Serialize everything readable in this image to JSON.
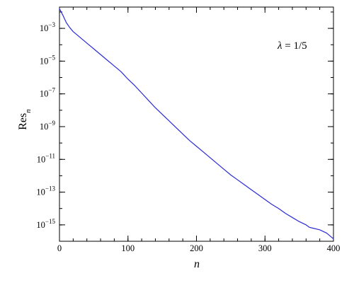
{
  "chart_data": {
    "type": "line",
    "title": "",
    "xlabel": "n",
    "ylabel": {
      "base": "Res",
      "subscript": "n"
    },
    "annotation": {
      "lhs": "λ",
      "rhs": " = 1/5"
    },
    "xlim": [
      0,
      400
    ],
    "ylim_log10": [
      -16,
      -1.7
    ],
    "y_scale": "log",
    "x_ticks": [
      {
        "value": 0,
        "label": "0"
      },
      {
        "value": 100,
        "label": "100"
      },
      {
        "value": 200,
        "label": "200"
      },
      {
        "value": 300,
        "label": "300"
      },
      {
        "value": 400,
        "label": "400"
      }
    ],
    "y_ticks": [
      {
        "value_log10": -3,
        "base": "10",
        "exponent": "−3"
      },
      {
        "value_log10": -5,
        "base": "10",
        "exponent": "−5"
      },
      {
        "value_log10": -7,
        "base": "10",
        "exponent": "−7"
      },
      {
        "value_log10": -9,
        "base": "10",
        "exponent": "−9"
      },
      {
        "value_log10": -11,
        "base": "10",
        "exponent": "−11"
      },
      {
        "value_log10": -13,
        "base": "10",
        "exponent": "−13"
      },
      {
        "value_log10": -15,
        "base": "10",
        "exponent": "−15"
      }
    ],
    "grid": false,
    "series": [
      {
        "color": "#2b2bd6",
        "x": [
          0,
          5,
          10,
          15,
          20,
          30,
          40,
          50,
          60,
          70,
          80,
          90,
          100,
          110,
          120,
          130,
          140,
          150,
          160,
          170,
          180,
          190,
          200,
          210,
          220,
          230,
          240,
          250,
          260,
          270,
          280,
          290,
          300,
          310,
          320,
          330,
          340,
          350,
          360,
          365,
          370,
          380,
          390,
          400
        ],
        "log10_y": [
          -1.8,
          -2.2,
          -2.65,
          -2.95,
          -3.2,
          -3.55,
          -3.9,
          -4.25,
          -4.6,
          -4.95,
          -5.3,
          -5.65,
          -6.1,
          -6.5,
          -6.95,
          -7.4,
          -7.85,
          -8.25,
          -8.65,
          -9.05,
          -9.45,
          -9.85,
          -10.2,
          -10.55,
          -10.9,
          -11.25,
          -11.6,
          -11.95,
          -12.25,
          -12.55,
          -12.85,
          -13.15,
          -13.45,
          -13.75,
          -14.0,
          -14.3,
          -14.55,
          -14.8,
          -15.0,
          -15.15,
          -15.2,
          -15.3,
          -15.5,
          -15.85
        ]
      }
    ]
  }
}
